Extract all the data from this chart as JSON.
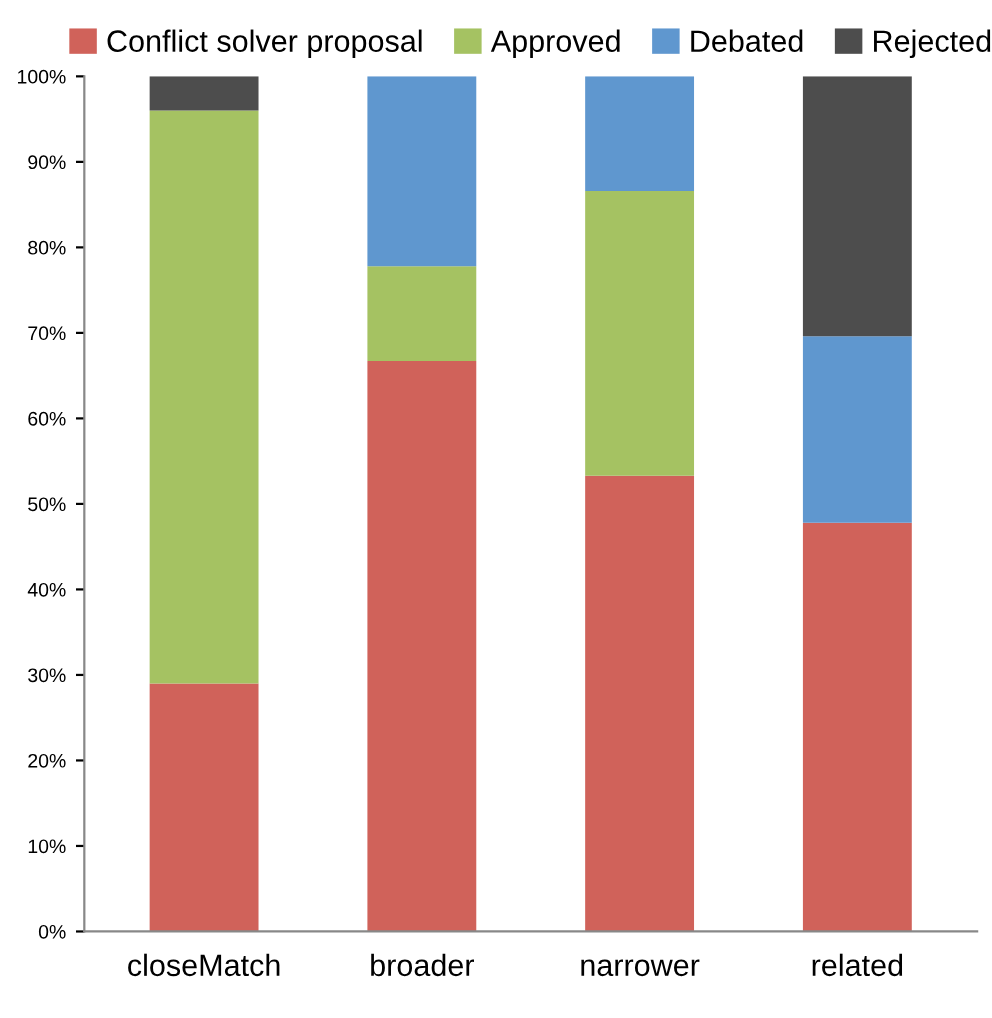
{
  "chart_data": {
    "type": "bar",
    "stacked": true,
    "categories": [
      "closeMatch",
      "broader",
      "narrower",
      "related"
    ],
    "series": [
      {
        "name": "Conflict solver proposal",
        "color": "#d0625a",
        "values": [
          29,
          66.7,
          53.3,
          47.8
        ]
      },
      {
        "name": "Approved",
        "color": "#a5c262",
        "values": [
          67,
          11.1,
          33.3,
          0
        ]
      },
      {
        "name": "Debated",
        "color": "#5f97cf",
        "values": [
          0,
          22.2,
          13.4,
          21.8
        ]
      },
      {
        "name": "Rejected",
        "color": "#4d4d4d",
        "values": [
          4,
          0,
          0,
          30.4
        ]
      }
    ],
    "ylim": [
      0,
      100
    ],
    "yticks": [
      {
        "value": 0,
        "label": "0%"
      },
      {
        "value": 10,
        "label": "10%"
      },
      {
        "value": 20,
        "label": "20%"
      },
      {
        "value": 30,
        "label": "30%"
      },
      {
        "value": 40,
        "label": "40%"
      },
      {
        "value": 50,
        "label": "50%"
      },
      {
        "value": 60,
        "label": "60%"
      },
      {
        "value": 70,
        "label": "70%"
      },
      {
        "value": 80,
        "label": "80%"
      },
      {
        "value": 90,
        "label": "90%"
      },
      {
        "value": 100,
        "label": "100%"
      }
    ],
    "legend": "top",
    "grid": false
  }
}
